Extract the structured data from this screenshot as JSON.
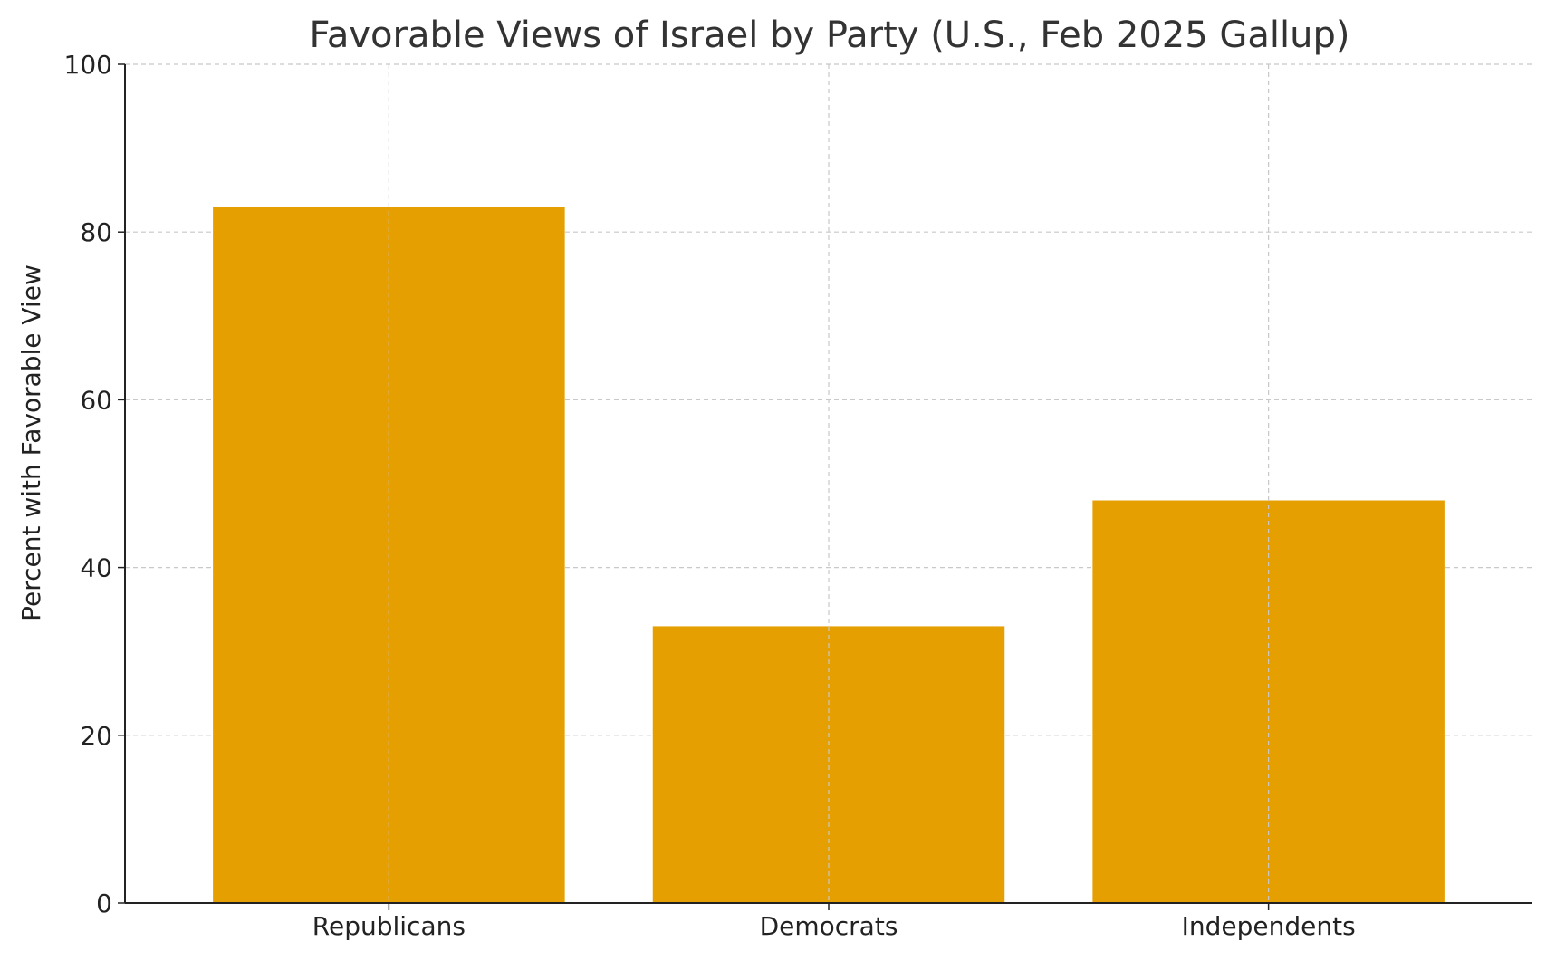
{
  "chart_data": {
    "type": "bar",
    "title": "Favorable Views of Israel by Party (U.S., Feb 2025 Gallup)",
    "xlabel": "",
    "ylabel": "Percent with Favorable View",
    "categories": [
      "Republicans",
      "Democrats",
      "Independents"
    ],
    "values": [
      83,
      33,
      48
    ],
    "ylim": [
      0,
      100
    ],
    "yticks": [
      0,
      20,
      40,
      60,
      80,
      100
    ],
    "grid": true,
    "bar_color": "#E69F00",
    "grid_color": "#c8c8c8",
    "axis_color": "#222222"
  }
}
